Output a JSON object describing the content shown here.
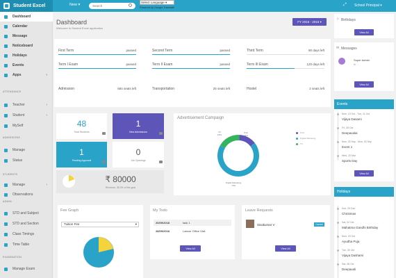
{
  "app": {
    "brand": "Student Excel",
    "new_label": "New",
    "search_placeholder": "Search",
    "language": "Select Language",
    "translate_label": "Powered by Google Translate",
    "user_role": "School Principal"
  },
  "sidebar": {
    "items": [
      {
        "label": "Dashboard"
      },
      {
        "label": "Calendar"
      },
      {
        "label": "Message"
      },
      {
        "label": "Noticeboard"
      },
      {
        "label": "Holidays"
      },
      {
        "label": "Events"
      },
      {
        "label": "Apps"
      }
    ],
    "attendance": {
      "head": "ATTENDANCE",
      "items": [
        "Teacher",
        "Student",
        "MySelf"
      ]
    },
    "admissions": {
      "head": "ADMISSIONS",
      "items": [
        "Manage",
        "Status"
      ]
    },
    "students": {
      "head": "STUDENTS",
      "items": [
        "Manage",
        "Observations"
      ]
    },
    "admin": {
      "head": "ADMIN",
      "items": [
        "STD and Subject",
        "STD and Section",
        "Class Timings",
        "Time Table"
      ]
    },
    "examination": {
      "head": "EXAMINATION",
      "items": [
        "Manage Exam"
      ]
    }
  },
  "page": {
    "title": "Dashboard",
    "subtitle": "Welcome to Student Excel application",
    "fy": "FY 2015 - 2016"
  },
  "stats": [
    {
      "label": "First Term",
      "value": "passed",
      "progress": 100
    },
    {
      "label": "Second Term",
      "value": "passed",
      "progress": 100
    },
    {
      "label": "Third Term",
      "value": "90 days left",
      "progress": 0
    },
    {
      "label": "Term I Exam",
      "value": "passed",
      "progress": 100
    },
    {
      "label": "Term II Exam",
      "value": "passed",
      "progress": 100
    },
    {
      "label": "Term III Exam",
      "value": "120 days left",
      "progress": 62
    },
    {
      "label": "Admission",
      "value": "684 seats left"
    },
    {
      "label": "Transportation",
      "value": "25 seats left"
    },
    {
      "label": "Hostel",
      "value": "2 seats left"
    }
  ],
  "tiles": {
    "total_students": {
      "value": "48",
      "label": "Total Students"
    },
    "new_admissions": {
      "value": "1",
      "label": "New Admissions"
    },
    "pending_approval": {
      "value": "1",
      "label": "Pending Approval"
    },
    "job_openings": {
      "value": "0",
      "label": "Job Openings"
    },
    "revenue": {
      "value": "80000",
      "label": "Revenue, 35.2% of the goal",
      "currency": "₹"
    }
  },
  "campaign": {
    "title": "Advertisement Campaign",
    "legend": [
      "Print",
      "Digital Marketing",
      "TV"
    ],
    "labels": [
      "TV\n18%",
      "Print\n14%",
      "Digital Marketing\n70%"
    ],
    "colors": [
      "#5d55b8",
      "#2aa3c9",
      "#35b35d"
    ]
  },
  "chart_data": {
    "type": "pie",
    "categories": [
      "Print",
      "Digital Marketing",
      "TV"
    ],
    "values": [
      14,
      70,
      18
    ]
  },
  "fee": {
    "title": "Fee Graph",
    "select": "Tuition Fee",
    "pie": [
      20,
      80
    ]
  },
  "todo": {
    "title": "My Todo",
    "rows": [
      {
        "date": "20/09/2018",
        "task": "task 1"
      },
      {
        "date": "28/09/2018",
        "task": "Labour Office Visit"
      }
    ],
    "btn": "View All"
  },
  "leave": {
    "title": "Leave Requests",
    "name": "Sivakumar V",
    "status": "Cancel",
    "btn": "View All"
  },
  "right": {
    "birthdays": {
      "title": "Birthdays",
      "btn": "View All"
    },
    "messages": {
      "title": "Messages",
      "name": "Super Admin",
      "sub": "hi",
      "btn": "View All"
    },
    "events": {
      "title": "Events",
      "btn": "View All",
      "items": [
        {
          "date": "Mon, 10 Oct - Tue, 11 Oct",
          "name": "Vijaya Dasami"
        },
        {
          "date": "Fri, 28 Oct",
          "name": "Deepavalai"
        },
        {
          "date": "Mon, 30 Sep - Mon, 03 Sep",
          "name": "Event 1"
        },
        {
          "date": "Wed, 20 Mar",
          "name": "Sports Day"
        }
      ]
    },
    "holidays": {
      "title": "Holidays",
      "items": [
        {
          "date": "Sun, 25 Dec",
          "name": "Christmas"
        },
        {
          "date": "Sat, 02 Oct",
          "name": "Mahatma Gandhi Birthday"
        },
        {
          "date": "Mon, 20 Oct",
          "name": "Ayudha Puja"
        },
        {
          "date": "Tue, 30 Oct",
          "name": "Vijaya Dashami"
        },
        {
          "date": "Sat, 08 Oct",
          "name": "Deepavali"
        }
      ]
    }
  }
}
